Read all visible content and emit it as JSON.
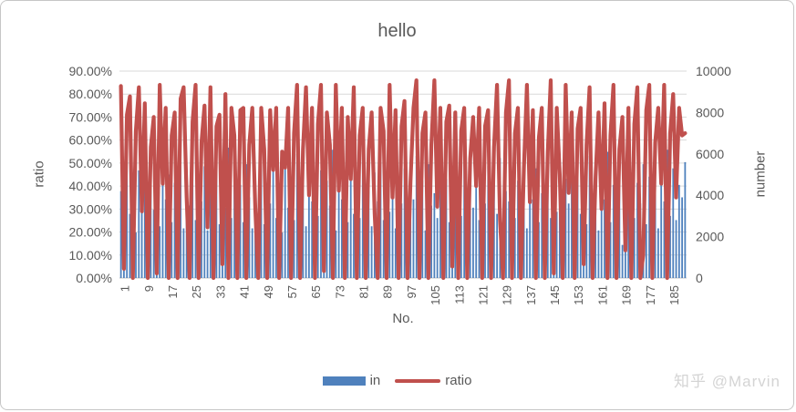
{
  "watermark": "知乎 @Marvin",
  "colors": {
    "bar": "#4F81BD",
    "line": "#C0504D",
    "grid": "#D9D9D9",
    "axis_line": "#C6C6C6",
    "text": "#595959",
    "watermark": "#D4D4D4"
  },
  "chart_data": {
    "type": "combo",
    "title": "hello",
    "x_title": "No.",
    "grid": "horizontal",
    "legend_position": "bottom",
    "n_points": 190,
    "y_left": {
      "title": "ratio",
      "min": 0,
      "max": 0.9,
      "tick_labels": [
        "0.00%",
        "10.00%",
        "20.00%",
        "30.00%",
        "40.00%",
        "50.00%",
        "60.00%",
        "70.00%",
        "80.00%",
        "90.00%"
      ]
    },
    "y_right": {
      "title": "number",
      "min": 0,
      "max": 10000,
      "tick_labels": [
        "0",
        "2000",
        "4000",
        "6000",
        "8000",
        "10000"
      ]
    },
    "x_tick_labels": [
      1,
      9,
      17,
      25,
      33,
      41,
      49,
      57,
      65,
      73,
      81,
      89,
      97,
      105,
      113,
      121,
      129,
      137,
      145,
      153,
      161,
      169,
      177,
      185
    ],
    "series": [
      {
        "name": "in",
        "type": "bar",
        "axis": "right",
        "color": "#4F81BD",
        "values": [
          4200,
          2600,
          5600,
          3100,
          4400,
          2200,
          5200,
          3600,
          4800,
          2900,
          5900,
          3300,
          4100,
          2500,
          6200,
          3800,
          5000,
          2700,
          4600,
          3200,
          5700,
          2400,
          4900,
          3500,
          6100,
          2800,
          4300,
          3700,
          5400,
          2300,
          4700,
          3000,
          5800,
          2600,
          4000,
          3400,
          6300,
          2900,
          5100,
          3300,
          4500,
          2700,
          5500,
          3900,
          2400,
          4800,
          3100,
          5900,
          2600,
          4200,
          3600,
          5300,
          2900,
          4600,
          2200,
          5700,
          3400,
          4400,
          2800,
          6000,
          3200,
          4900,
          2500,
          5600,
          3700,
          4100,
          3000,
          5200,
          2600,
          4700,
          3500,
          6200,
          2300,
          4400,
          3800,
          5000,
          2700,
          5500,
          3100,
          4600,
          2900,
          5800,
          3400,
          4200,
          2500,
          5100,
          3700,
          6100,
          2800,
          4500,
          3200,
          5600,
          2400,
          4900,
          3600,
          5300,
          2600,
          4400,
          3800,
          5900,
          3100,
          4700,
          2300,
          5500,
          3500,
          4100,
          2900,
          6300,
          3300,
          4800,
          2700,
          5200,
          3900,
          4300,
          3000,
          5700,
          2500,
          4600,
          3400,
          6000,
          2800,
          4400,
          3600,
          5400,
          2200,
          4900,
          3100,
          5800,
          2600,
          4200,
          3700,
          5100,
          2900,
          4700,
          3300,
          5900,
          2400,
          4500,
          3800,
          5300,
          2700,
          4100,
          3500,
          6200,
          2900,
          4600,
          3200,
          5600,
          2500,
          4800,
          3600,
          5000,
          2800,
          5400,
          3100,
          4700,
          2600,
          5900,
          3400,
          4300,
          2300,
          5200,
          3800,
          6100,
          2700,
          4500,
          3300,
          5700,
          1600,
          4400,
          3500,
          5100,
          2900,
          4600,
          3600,
          5500,
          2600,
          4900,
          3200,
          5800,
          2400,
          4700,
          3700,
          6200,
          3000,
          5300,
          2800,
          4500,
          3900,
          5600
        ]
      },
      {
        "name": "ratio",
        "type": "line",
        "axis": "left",
        "color": "#C0504D",
        "values_percent": [
          83.5,
          4,
          71,
          79,
          0,
          64,
          83,
          29,
          76,
          0,
          57,
          70,
          2,
          84,
          41,
          74,
          0,
          62,
          72,
          0,
          78,
          83,
          35,
          0,
          68,
          84,
          0,
          59,
          75,
          22,
          83,
          0,
          66,
          71,
          6,
          80,
          0,
          74,
          62,
          0,
          73,
          74,
          0,
          58,
          74,
          30,
          0,
          74,
          56,
          0,
          73,
          47,
          74,
          0,
          55,
          48,
          74,
          0,
          63,
          84,
          0,
          56,
          83,
          36,
          74,
          0,
          67,
          84,
          3,
          72,
          58,
          0,
          84,
          38,
          74,
          0,
          70,
          43,
          83,
          0,
          62,
          74,
          0,
          56,
          72,
          28,
          0,
          74,
          64,
          0,
          84,
          35,
          73,
          0,
          66,
          77,
          0,
          42,
          74,
          86,
          0,
          63,
          72,
          0,
          58,
          86,
          31,
          74,
          0,
          68,
          75,
          5,
          72,
          0,
          64,
          74,
          0,
          52,
          70,
          40,
          74,
          0,
          66,
          73,
          0,
          57,
          84,
          25,
          0,
          72,
          86,
          0,
          63,
          74,
          0,
          48,
          84,
          33,
          73,
          0,
          61,
          74,
          0,
          55,
          86,
          2,
          74,
          45,
          0,
          84,
          37,
          72,
          0,
          65,
          74,
          6,
          58,
          83,
          0,
          44,
          72,
          30,
          76,
          0,
          62,
          84,
          0,
          56,
          70,
          12,
          74,
          0,
          67,
          83,
          0,
          10,
          73,
          84,
          0,
          59,
          74,
          41,
          84,
          0,
          63,
          80,
          35,
          74,
          62,
          63
        ]
      }
    ]
  }
}
